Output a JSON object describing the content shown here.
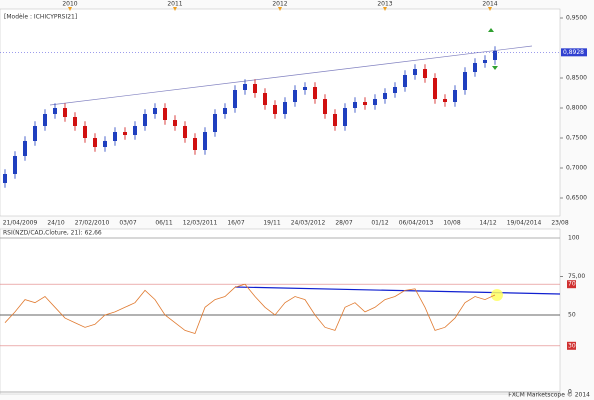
{
  "chart_data": [
    {
      "type": "candlestick",
      "legend_text": "[Modèle : ICHICYPRSI21]",
      "year_labels": [
        "2010",
        "2011",
        "2012",
        "2013",
        "2014"
      ],
      "x_labels": [
        "21/04/2009",
        "24/10",
        "27/02/2010",
        "03/07",
        "06/11",
        "12/03/2011",
        "16/07",
        "19/11",
        "24/03/2012",
        "28/07",
        "01/12",
        "06/04/2013",
        "10/08",
        "14/12",
        "19/04/2014",
        "23/08"
      ],
      "open": [
        0.675,
        0.69,
        0.72,
        0.745,
        0.77,
        0.79,
        0.8,
        0.785,
        0.77,
        0.75,
        0.735,
        0.745,
        0.76,
        0.755,
        0.77,
        0.79,
        0.8,
        0.78,
        0.77,
        0.75,
        0.73,
        0.76,
        0.79,
        0.8,
        0.83,
        0.84,
        0.825,
        0.805,
        0.79,
        0.81,
        0.83,
        0.835,
        0.815,
        0.79,
        0.77,
        0.8,
        0.81,
        0.805,
        0.815,
        0.825,
        0.835,
        0.855,
        0.865,
        0.85,
        0.815,
        0.81,
        0.83,
        0.86,
        0.875,
        0.88
      ],
      "high": [
        0.698,
        0.728,
        0.753,
        0.778,
        0.798,
        0.808,
        0.808,
        0.793,
        0.778,
        0.758,
        0.753,
        0.768,
        0.768,
        0.778,
        0.798,
        0.808,
        0.808,
        0.788,
        0.778,
        0.758,
        0.768,
        0.798,
        0.808,
        0.838,
        0.848,
        0.848,
        0.833,
        0.813,
        0.818,
        0.838,
        0.843,
        0.843,
        0.823,
        0.798,
        0.808,
        0.818,
        0.818,
        0.823,
        0.833,
        0.843,
        0.863,
        0.873,
        0.873,
        0.858,
        0.823,
        0.838,
        0.868,
        0.883,
        0.888,
        0.903
      ],
      "low": [
        0.667,
        0.682,
        0.712,
        0.737,
        0.762,
        0.782,
        0.777,
        0.762,
        0.742,
        0.727,
        0.727,
        0.737,
        0.747,
        0.747,
        0.762,
        0.782,
        0.772,
        0.762,
        0.742,
        0.722,
        0.722,
        0.752,
        0.782,
        0.792,
        0.822,
        0.817,
        0.797,
        0.782,
        0.782,
        0.802,
        0.822,
        0.807,
        0.782,
        0.762,
        0.762,
        0.792,
        0.797,
        0.797,
        0.807,
        0.817,
        0.827,
        0.847,
        0.842,
        0.807,
        0.802,
        0.802,
        0.822,
        0.852,
        0.867,
        0.872
      ],
      "close": [
        0.69,
        0.72,
        0.745,
        0.77,
        0.79,
        0.8,
        0.785,
        0.77,
        0.75,
        0.735,
        0.745,
        0.76,
        0.755,
        0.77,
        0.79,
        0.8,
        0.78,
        0.77,
        0.75,
        0.73,
        0.76,
        0.79,
        0.8,
        0.83,
        0.84,
        0.825,
        0.805,
        0.79,
        0.81,
        0.83,
        0.835,
        0.815,
        0.79,
        0.77,
        0.8,
        0.81,
        0.805,
        0.815,
        0.825,
        0.835,
        0.855,
        0.865,
        0.85,
        0.815,
        0.81,
        0.83,
        0.86,
        0.875,
        0.88,
        0.895
      ],
      "up_color": "#1f3fbf",
      "down_color": "#d01010",
      "ylim": [
        0.62,
        0.965
      ],
      "yticks": [
        {
          "value": 0.95,
          "label": "0,9500"
        },
        {
          "value": 0.85,
          "label": "0,8500"
        },
        {
          "value": 0.8,
          "label": "0,8000"
        },
        {
          "value": 0.75,
          "label": "0,7500"
        },
        {
          "value": 0.7,
          "label": "0,7000"
        },
        {
          "value": 0.65,
          "label": "0,6500"
        }
      ],
      "last_price": {
        "value": 0.8928,
        "label": "0,8928"
      }
    },
    {
      "type": "line",
      "title": "RSI(NZD/CAD,Cloture, 21): 62,66",
      "values": [
        45,
        52,
        60,
        58,
        62,
        55,
        48,
        45,
        42,
        44,
        50,
        52,
        55,
        58,
        66,
        60,
        50,
        45,
        40,
        38,
        55,
        60,
        62,
        68,
        70,
        62,
        55,
        50,
        58,
        62,
        60,
        50,
        42,
        40,
        55,
        58,
        52,
        55,
        60,
        62,
        66,
        67,
        55,
        40,
        42,
        48,
        58,
        62,
        60,
        63
      ],
      "color": "#e07a30",
      "ylim": [
        0,
        100
      ],
      "yticks": [
        100,
        {
          "value": 75,
          "label": "75,00"
        },
        70,
        50,
        30,
        0
      ],
      "footer": "FXCM Marketscope © 2014"
    }
  ]
}
